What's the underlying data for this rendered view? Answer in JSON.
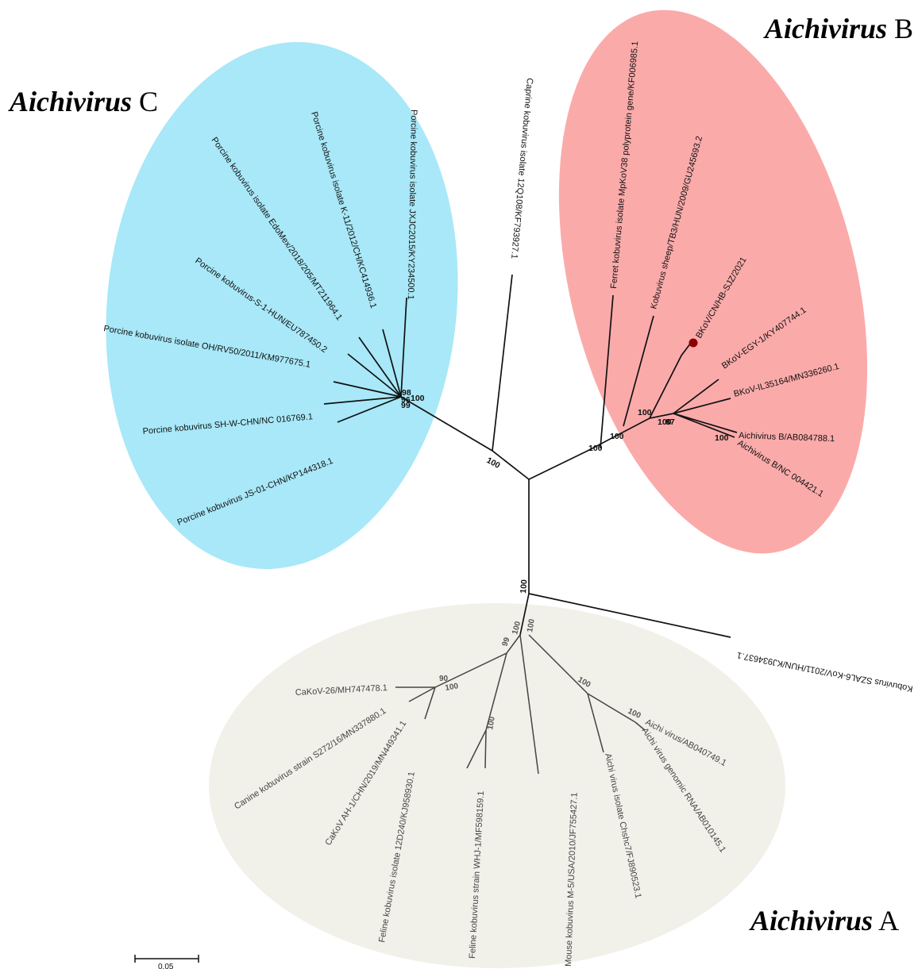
{
  "clades": {
    "a": {
      "genus": "Aichivirus",
      "letter": "A",
      "color": "#f1f1ea"
    },
    "b": {
      "genus": "Aichivirus",
      "letter": "B",
      "color": "#fbaaaa"
    },
    "c": {
      "genus": "Aichivirus",
      "letter": "C",
      "color": "#a8e8f8"
    }
  },
  "leaves": {
    "c1": "Porcine kobuvirus isolate JXJC2015/KY234500.1",
    "c2": "Porcine kobuvirus isolate K-11/2012/CH/KC414936.1",
    "c3": "Porcine kobuvirus isolate EdoMex/2018/205/MT211964.1",
    "c4": "Porcine kobuvirus-S-1-HUN/EU787450.2",
    "c5": "Porcine kobuvirus isolate OH/RV50/2011/KM977675.1",
    "c6": "Porcine kobuvirus SH-W-CHN/NC 016769.1",
    "c7": "Porcine kobuvirus JS-01-CHN/KP144318.1",
    "caprine": "Caprine kobuvirus isolate 12Q108/KF793927.1",
    "b1": "Ferret kobuvirus isolate MpKoV38 polyprotein gene/KF006985.1",
    "b2": "Kobuvirus sheep/TB3/HUN/2009/GU245693.2",
    "b3": "BKoV/CN/HB-SJZ/2021",
    "b4": "BKoV-EGY-1/KY407744.1",
    "b5": "BKoV-IL35164/MN336260.1",
    "b6": "Aichivirus B/AB084788.1",
    "b7": "Aichivirus B/NC 004421.1",
    "szal": "Kobuvirus SZAL6-KoV/2011/HUN/KJ934637.1",
    "a1": "CaKoV-26/MH747478.1",
    "a2": "Canine kobuvirus strain S272/16/MN337880.1",
    "a3": "CaKoV AH-1/CHN/2019/MN449341.1",
    "a4": "Feline kobuvirus isolate 12D240/KJ958930.1",
    "a5": "Feline kobuvirus strain WHJ-1/MF598159.1",
    "a6": "Mouse kobuvirus M-5/USA/2010/JF755427.1",
    "a7": "Aichi virus isolate Chshc7/FJ890523.1",
    "a8": "Aichi virus genomic RNA/AB010145.1",
    "a9": "Aichi virus/AB040749.1"
  },
  "bootstrap": {
    "root_c": "100",
    "root_a": "100",
    "c_cluster_1": "98",
    "c_cluster_2": "100",
    "c_cluster_3": "96",
    "c_cluster_4": "99",
    "b_base": "100",
    "b_node2": "100",
    "b_node3": "100",
    "b_node4": "100",
    "b_node5": "87",
    "b_node6": "100",
    "a_top1": "99",
    "a_top2": "100",
    "a_top3": "100",
    "a_canine1": "90",
    "a_canine2": "100",
    "a_feline": "100",
    "a_aichi1": "100",
    "a_aichi2": "100"
  },
  "scale_bar": "0.05"
}
